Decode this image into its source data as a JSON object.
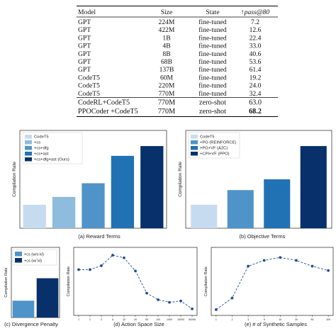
{
  "table": {
    "header_stub": "",
    "columns": [
      "Model",
      "Size",
      "State",
      "↑pass@80"
    ],
    "rows": [
      [
        "GPT",
        "224M",
        "fine-tuned",
        "7.2"
      ],
      [
        "GPT",
        "422M",
        "fine-tuned",
        "12.6"
      ],
      [
        "GPT",
        "1B",
        "fine-tuned",
        "22.4"
      ],
      [
        "GPT",
        "4B",
        "fine-tuned",
        "33.0"
      ],
      [
        "GPT",
        "8B",
        "fine-tuned",
        "40.6"
      ],
      [
        "GPT",
        "68B",
        "fine-tuned",
        "53.6"
      ],
      [
        "GPT",
        "137B",
        "fine-tuned",
        "61.4"
      ],
      [
        "CodeT5",
        "60M",
        "fine-tuned",
        "19.2"
      ],
      [
        "CodeT5",
        "220M",
        "fine-tuned",
        "24.0"
      ],
      [
        "CodeT5",
        "770M",
        "fine-tuned",
        "32.4"
      ],
      [
        "CodeRL+CodeT5",
        "770M",
        "zero-shot",
        "63.0"
      ],
      [
        "PPOCoder +CodeT5",
        "770M",
        "zero-shot",
        "68.2"
      ]
    ],
    "bold_row_index": 11
  },
  "colors": {
    "c1": "#c6dbef",
    "c2": "#8ebcdc",
    "c3": "#4f94c9",
    "c4": "#2171b5",
    "c5": "#08306b",
    "line": "#1f4e9a"
  },
  "chart_data": [
    {
      "type": "bar",
      "caption": "(a) Reward Terms",
      "ylabel": "Compilation Rate",
      "categories": [
        "CodeT5",
        "+cs",
        "+cs+dfg",
        "+cs+ast",
        "+cs+dfg+ast (Ours)"
      ],
      "values": [
        0.62,
        0.66,
        0.73,
        0.87,
        0.92
      ],
      "legend": [
        "CodeT5",
        "+cs",
        "+cs+dfg",
        "+cs+ast",
        "+cs+dfg+ast (Ours)"
      ],
      "legend_position": "top-left",
      "ylim": [
        0.5,
        1.0
      ]
    },
    {
      "type": "bar",
      "caption": "(b) Objective Terms",
      "ylabel": "Compilation Rate",
      "categories": [
        "CodeT5",
        "+PG (REINFORCE)",
        "+PG+VF (A2C)",
        "+CPI+VF (PPO)"
      ],
      "values": [
        0.62,
        0.695,
        0.75,
        0.92
      ],
      "legend": [
        "CodeT5",
        "+PG (REINFORCE)",
        "+PG+VF (A2C)",
        "+CPI+VF (PPO)"
      ],
      "legend_position": "top-left",
      "ylim": [
        0.5,
        1.0
      ]
    },
    {
      "type": "bar",
      "caption": "(c) Divergence Penalty",
      "ylabel": "Compilation Rate",
      "categories": [
        "+cs (w/o kl)",
        "+cs (w/ kl)"
      ],
      "values": [
        0.62,
        0.78
      ],
      "legend": [
        "+cs (w/o kl)",
        "+cs (w/ kl)"
      ],
      "legend_position": "top-left",
      "ylim": [
        0.5,
        1.0
      ]
    },
    {
      "type": "line",
      "caption": "(d) Action Space Size",
      "ylabel": "Compilation Rate",
      "x": [
        "1",
        "2",
        "3",
        "5",
        "10",
        "20",
        "50",
        "100",
        "1000",
        "10000",
        "50265"
      ],
      "values": [
        0.8,
        0.8,
        0.83,
        0.91,
        0.89,
        0.79,
        0.62,
        0.57,
        0.55,
        0.56,
        0.5
      ],
      "ylim": [
        0.45,
        0.97
      ]
    },
    {
      "type": "line",
      "caption": "(e) # of Synthetic Samples",
      "ylabel": "Compilation Rate",
      "x": [
        "1",
        "2",
        "3",
        "5",
        "10",
        "20",
        "50",
        "100"
      ],
      "values": [
        0.52,
        0.6,
        0.82,
        0.86,
        0.88,
        0.86,
        0.82,
        0.79
      ],
      "ylim": [
        0.48,
        0.95
      ]
    }
  ]
}
